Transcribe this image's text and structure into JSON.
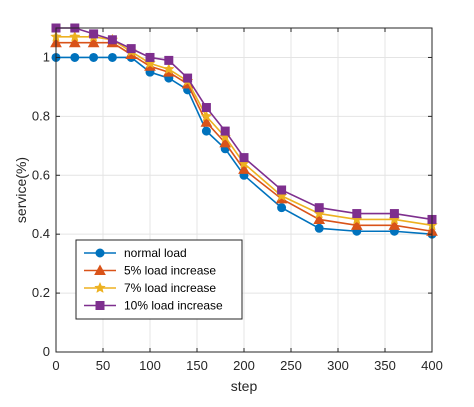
{
  "chart_data": {
    "type": "line",
    "title": "",
    "xlabel": "step",
    "ylabel": "service(%)",
    "xlim": [
      0,
      400
    ],
    "ylim": [
      0,
      1.1
    ],
    "xticks": [
      0,
      50,
      100,
      150,
      200,
      250,
      300,
      350,
      400
    ],
    "yticks": [
      0,
      0.2,
      0.4,
      0.6,
      0.8,
      1
    ],
    "xtick_labels": [
      "0",
      "50",
      "100",
      "150",
      "200",
      "250",
      "300",
      "350",
      "400"
    ],
    "ytick_labels": [
      "0",
      "0.2",
      "0.4",
      "0.6",
      "0.8",
      "1"
    ],
    "grid": true,
    "legend_position": "bottom-left",
    "x": [
      0,
      20,
      40,
      60,
      80,
      100,
      120,
      140,
      160,
      180,
      200,
      240,
      280,
      320,
      360,
      400
    ],
    "series": [
      {
        "name": "normal load",
        "color": "#0072BD",
        "marker": "circle",
        "values": [
          1.0,
          1.0,
          1.0,
          1.0,
          1.0,
          0.95,
          0.93,
          0.89,
          0.75,
          0.69,
          0.6,
          0.49,
          0.42,
          0.41,
          0.41,
          0.4
        ]
      },
      {
        "name": "5% load increase",
        "color": "#D95319",
        "marker": "triangle",
        "values": [
          1.05,
          1.05,
          1.05,
          1.05,
          1.01,
          0.97,
          0.95,
          0.91,
          0.78,
          0.71,
          0.62,
          0.52,
          0.45,
          0.43,
          0.43,
          0.41
        ]
      },
      {
        "name": "7% load increase",
        "color": "#EDB120",
        "marker": "star",
        "values": [
          1.07,
          1.07,
          1.07,
          1.06,
          1.02,
          0.98,
          0.96,
          0.92,
          0.8,
          0.73,
          0.64,
          0.53,
          0.47,
          0.45,
          0.45,
          0.43
        ]
      },
      {
        "name": "10% load increase",
        "color": "#7E2F8E",
        "marker": "square",
        "values": [
          1.1,
          1.1,
          1.08,
          1.06,
          1.03,
          1.0,
          0.99,
          0.93,
          0.83,
          0.75,
          0.66,
          0.55,
          0.49,
          0.47,
          0.47,
          0.45
        ]
      }
    ]
  }
}
